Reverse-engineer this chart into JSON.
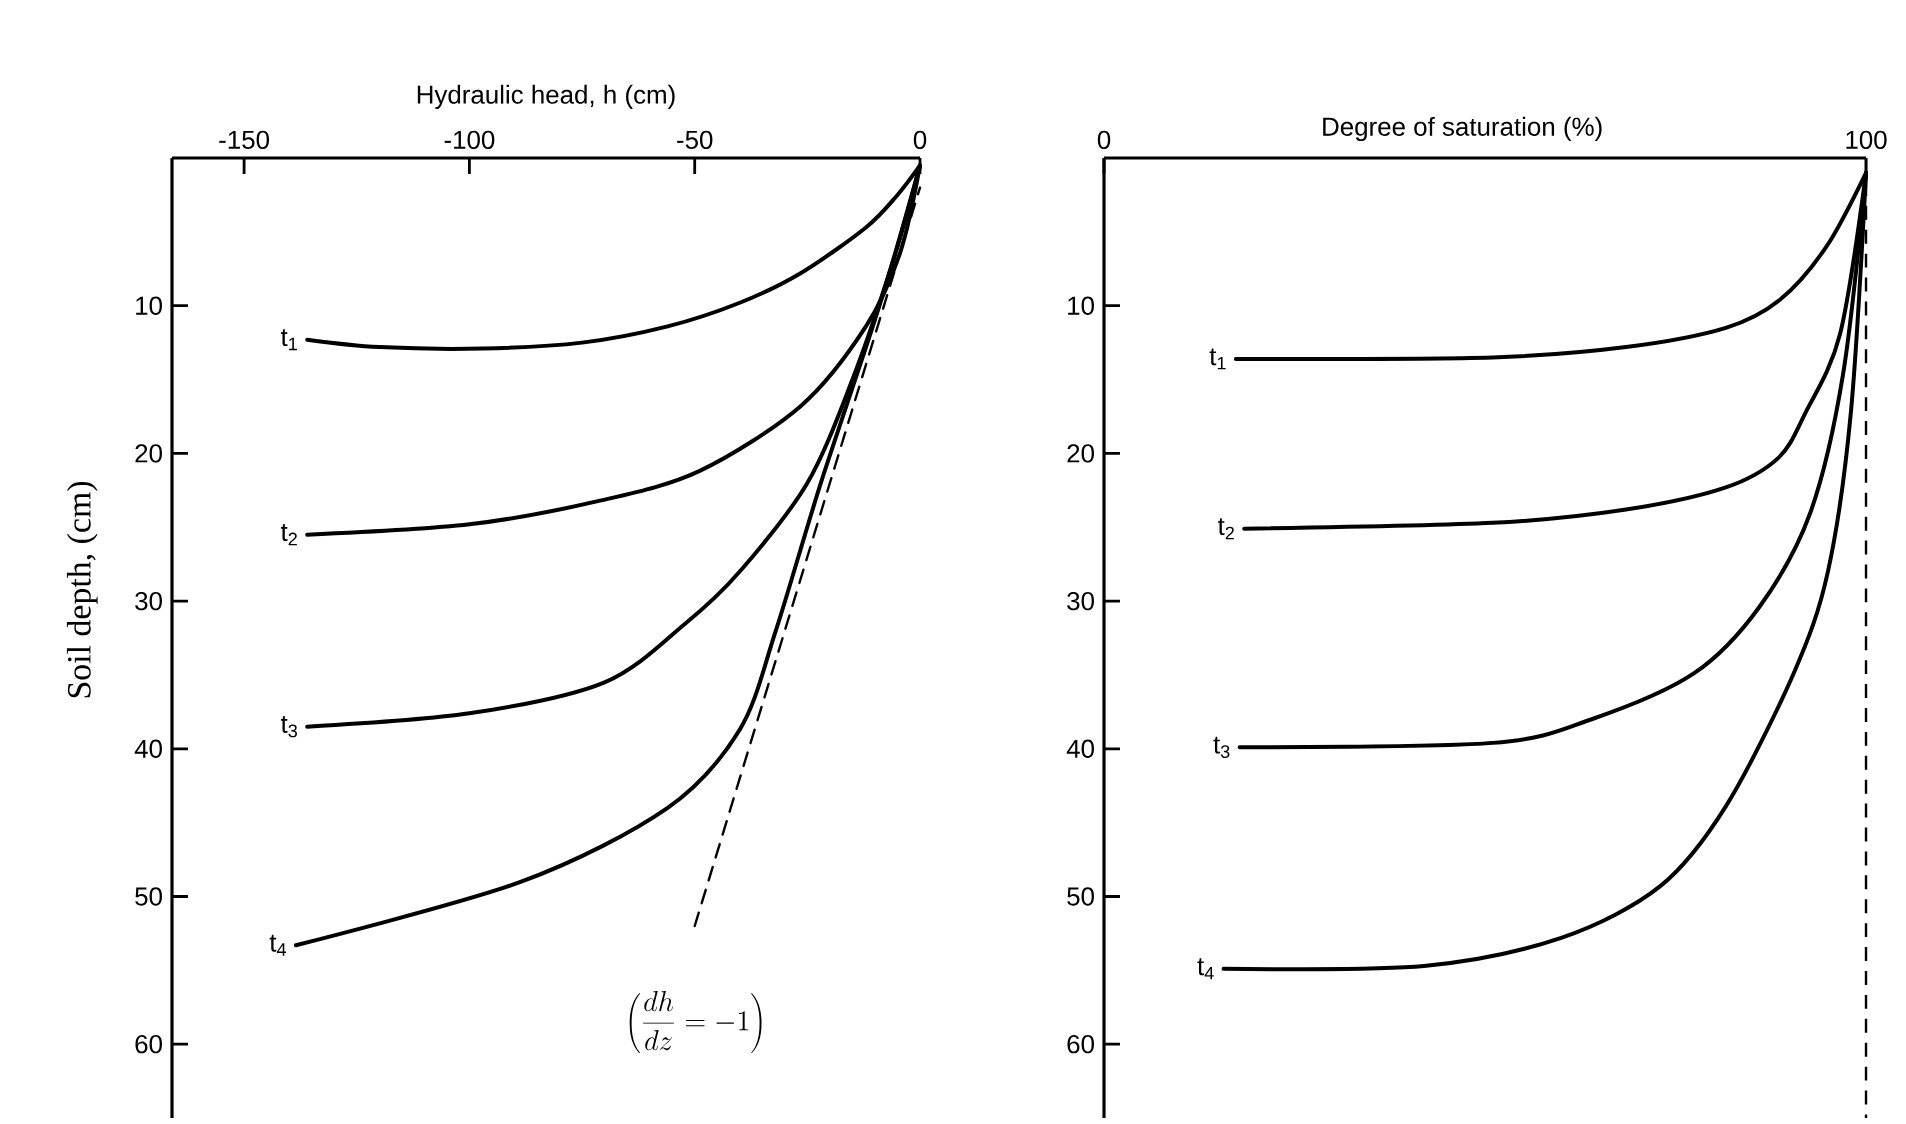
{
  "chart_data": [
    {
      "type": "line",
      "xlabel": "Hydraulic head, h (cm)",
      "ylabel": "Soil depth, (cm)",
      "xlim": [
        -166,
        0
      ],
      "xticks": [
        -150,
        -100,
        -50,
        0
      ],
      "ylim": [
        65,
        0
      ],
      "yticks": [
        10,
        20,
        30,
        40,
        50,
        60
      ],
      "grid": false,
      "marker": "none",
      "line_style": "solid",
      "series": [
        {
          "name": "t$_{1}$",
          "color": "#000000",
          "x": [
            -136,
            -120,
            -97,
            -75,
            -56,
            -40,
            -26.5,
            -12,
            -5,
            0
          ],
          "values": [
            12.3,
            12.8,
            12.9,
            12.5,
            11.4,
            9.8,
            7.8,
            4.7,
            2.5,
            0.5
          ]
        },
        {
          "name": "t$_{2}$",
          "color": "#000000",
          "x": [
            -136,
            -100,
            -71,
            -49,
            -26.5,
            -12,
            -4.4,
            0
          ],
          "values": [
            25.5,
            24.8,
            23.2,
            21.2,
            16.8,
            11.4,
            6.4,
            0.5
          ]
        },
        {
          "name": "t$_{3}$",
          "color": "#000000",
          "x": [
            -136,
            -100,
            -70,
            -52,
            -40,
            -25,
            -15,
            -6,
            0
          ],
          "values": [
            38.5,
            37.6,
            35.5,
            31.5,
            28,
            22,
            15,
            7,
            0.5
          ]
        },
        {
          "name": "t$_{4}$",
          "color": "#000000",
          "x": [
            -138.5,
            -88.5,
            -56,
            -40,
            -32,
            -22,
            -9,
            0
          ],
          "values": [
            53.3,
            49,
            44,
            38.7,
            32,
            22,
            10,
            0.5
          ]
        },
        {
          "color": "#000000",
          "line_style": "dashed",
          "x": [
            -50,
            0
          ],
          "values": [
            52,
            2
          ]
        }
      ],
      "annotations": [
        "\\left(\\frac{dh}{dz} = -1\\right)"
      ]
    },
    {
      "type": "line",
      "xlabel": "Degree of saturation (%)",
      "xlim": [
        0,
        100
      ],
      "xticks": [
        0,
        100
      ],
      "ylim": [
        65,
        0
      ],
      "yticks": [
        10,
        20,
        30,
        40,
        50,
        60
      ],
      "grid": false,
      "marker": "none",
      "line_style": "solid",
      "series": [
        {
          "name": "t$_{1}$",
          "color": "#000000",
          "x": [
            17.3,
            51,
            68.5,
            81.6,
            88.7,
            94.8,
            100
          ],
          "values": [
            13.6,
            13.5,
            12.8,
            11.5,
            9.6,
            6,
            1
          ]
        },
        {
          "name": "t$_{2}$",
          "color": "#000000",
          "x": [
            18.4,
            51,
            68.5,
            81.6,
            88.5,
            92,
            96.6,
            100
          ],
          "values": [
            25.1,
            24.7,
            23.8,
            22.3,
            20.3,
            17.3,
            11.9,
            1
          ]
        },
        {
          "name": "t$_{3}$",
          "color": "#000000",
          "x": [
            17.8,
            51,
            64,
            77.4,
            86,
            92.7,
            97,
            100
          ],
          "values": [
            39.9,
            39.6,
            38,
            34.9,
            30.4,
            24,
            14.6,
            1
          ]
        },
        {
          "name": "t$_{4}$",
          "color": "#000000",
          "x": [
            15.7,
            42,
            60,
            73,
            81.6,
            90.5,
            95,
            98,
            100
          ],
          "values": [
            54.9,
            54.7,
            52.8,
            49.3,
            43.9,
            34.9,
            28,
            17.3,
            1
          ]
        }
      ],
      "ref_lines": [
        {
          "axis": "x",
          "value": 100,
          "color": "#000000",
          "line_style": "dashed"
        }
      ]
    }
  ]
}
